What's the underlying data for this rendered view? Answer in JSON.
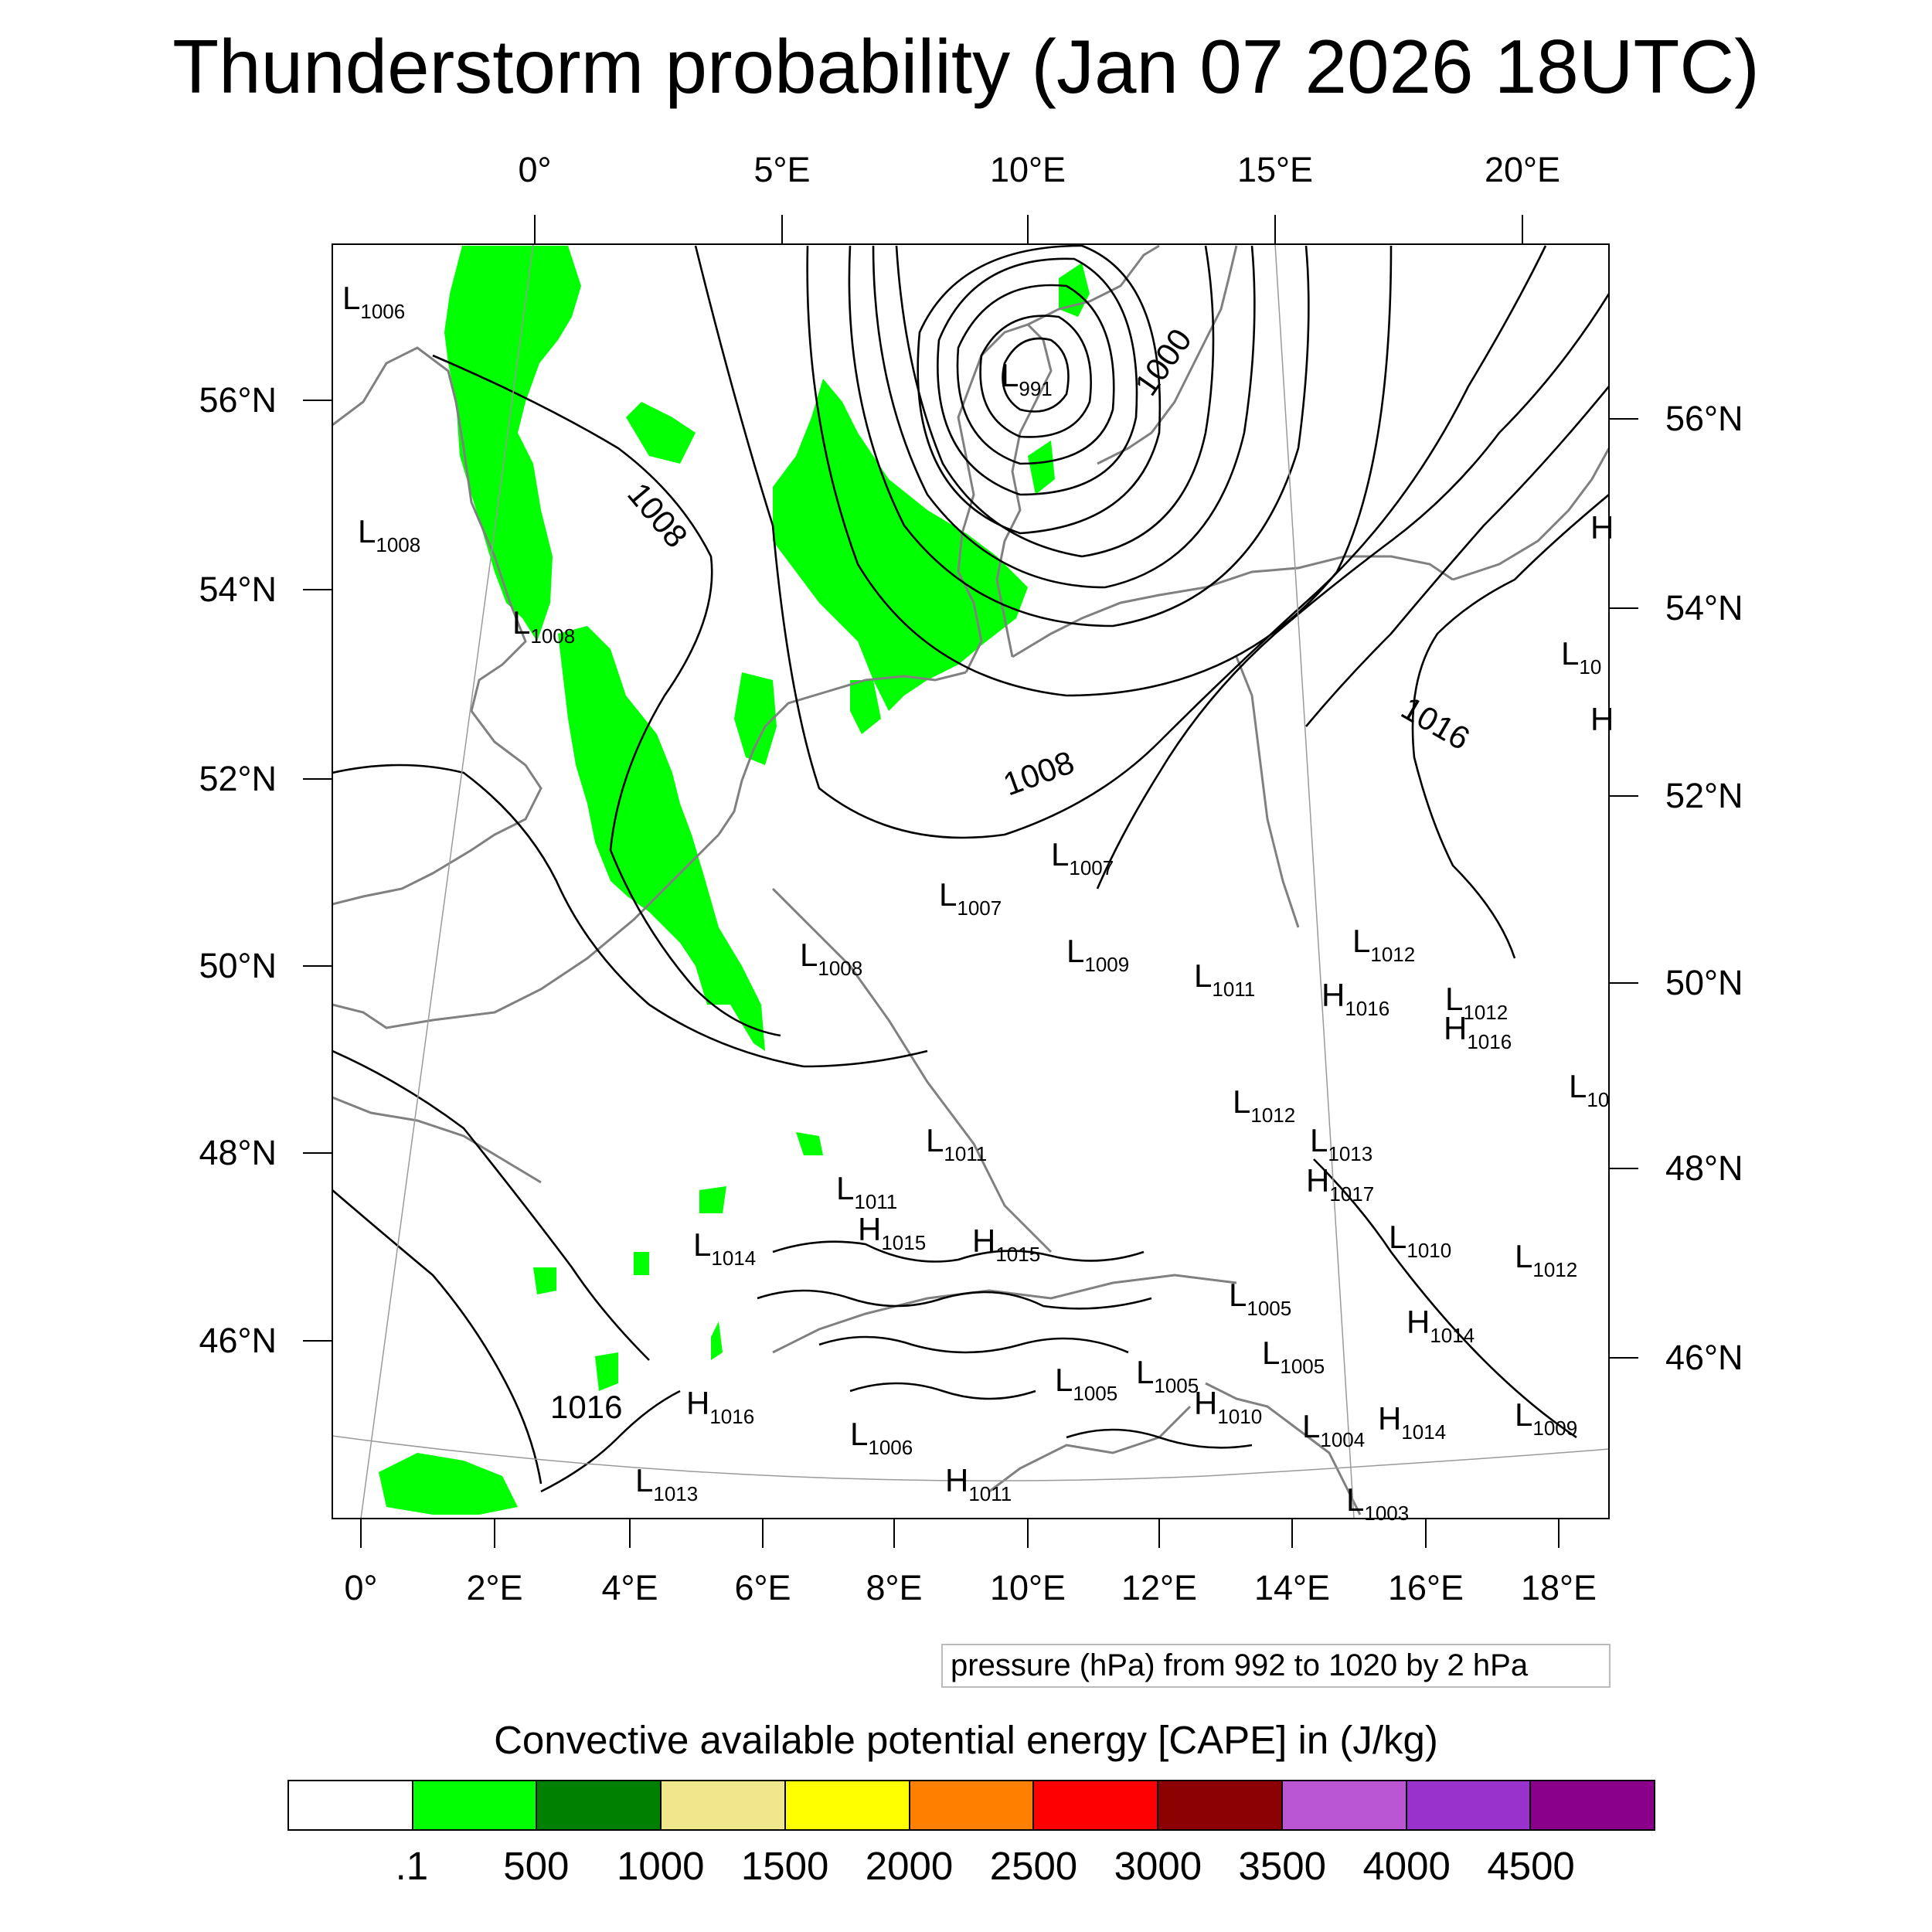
{
  "title": "Thunderstorm probability (Jan 07 2026 18UTC)",
  "top_lon_labels": [
    "0°",
    "5°E",
    "10°E",
    "15°E",
    "20°E"
  ],
  "bottom_lon_labels": [
    "0°",
    "2°E",
    "4°E",
    "6°E",
    "8°E",
    "10°E",
    "12°E",
    "14°E",
    "16°E",
    "18°E"
  ],
  "left_lat_labels": [
    "56°N",
    "54°N",
    "52°N",
    "50°N",
    "48°N",
    "46°N"
  ],
  "right_lat_labels": [
    "56°N",
    "54°N",
    "52°N",
    "50°N",
    "48°N",
    "46°N"
  ],
  "contour_info": "pressure (hPa) from 992 to 1020 by 2 hPa",
  "colorbar": {
    "title": "Convective available potential energy [CAPE] in (J/kg)",
    "colors": [
      "#ffffff",
      "#00ff00",
      "#008000",
      "#f0e68c",
      "#ffff00",
      "#ff8000",
      "#ff0000",
      "#8b0000",
      "#ba55d3",
      "#9932cc",
      "#8b008b"
    ],
    "labels": [
      ".1",
      "500",
      "1000",
      "1500",
      "2000",
      "2500",
      "3000",
      "3500",
      "4000",
      "4500"
    ]
  },
  "isobar_labels": [
    "1008",
    "1000",
    "1008",
    "1016",
    "1016"
  ],
  "pressure_centers": [
    {
      "type": "L",
      "value": "1006"
    },
    {
      "type": "L",
      "value": "991"
    },
    {
      "type": "L",
      "value": "1008"
    },
    {
      "type": "L",
      "value": "1008"
    },
    {
      "type": "H",
      "value": ""
    },
    {
      "type": "L",
      "value": "10"
    },
    {
      "type": "H",
      "value": ""
    },
    {
      "type": "L",
      "value": "1007"
    },
    {
      "type": "L",
      "value": "1007"
    },
    {
      "type": "L",
      "value": "1008"
    },
    {
      "type": "L",
      "value": "1009"
    },
    {
      "type": "L",
      "value": "1011"
    },
    {
      "type": "L",
      "value": "1012"
    },
    {
      "type": "H",
      "value": "1016"
    },
    {
      "type": "L",
      "value": "1012"
    },
    {
      "type": "H",
      "value": "1016"
    },
    {
      "type": "L",
      "value": "10"
    },
    {
      "type": "L",
      "value": "1012"
    },
    {
      "type": "L",
      "value": "1011"
    },
    {
      "type": "L",
      "value": "1013"
    },
    {
      "type": "H",
      "value": "1017"
    },
    {
      "type": "L",
      "value": "1011"
    },
    {
      "type": "H",
      "value": "1015"
    },
    {
      "type": "H",
      "value": "1015"
    },
    {
      "type": "L",
      "value": "1014"
    },
    {
      "type": "L",
      "value": "1010"
    },
    {
      "type": "L",
      "value": "1012"
    },
    {
      "type": "L",
      "value": "1005"
    },
    {
      "type": "H",
      "value": "1014"
    },
    {
      "type": "L",
      "value": "1005"
    },
    {
      "type": "L",
      "value": "1005"
    },
    {
      "type": "L",
      "value": "1005"
    },
    {
      "type": "H",
      "value": "1016"
    },
    {
      "type": "H",
      "value": "1010"
    },
    {
      "type": "L",
      "value": "1006"
    },
    {
      "type": "L",
      "value": "1004"
    },
    {
      "type": "H",
      "value": "1014"
    },
    {
      "type": "L",
      "value": "1009"
    },
    {
      "type": "L",
      "value": "1013"
    },
    {
      "type": "H",
      "value": "1011"
    },
    {
      "type": "L",
      "value": "1003"
    }
  ]
}
